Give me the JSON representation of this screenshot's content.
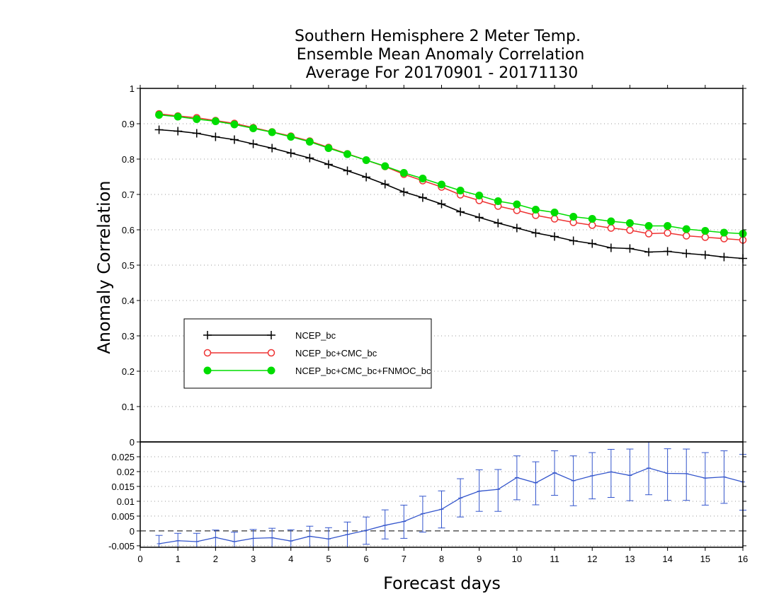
{
  "chart_data": [
    {
      "type": "line",
      "title": [
        "Southern Hemisphere 2 Meter Temp.",
        "Ensemble Mean Anomaly Correlation",
        "Average For 20170901 - 20171130"
      ],
      "xlabel": "Forecast days",
      "ylabel": "Anomaly Correlation",
      "xlim": [
        0,
        16
      ],
      "ylim": [
        0,
        1
      ],
      "xticks": [
        "0",
        "1",
        "2",
        "3",
        "4",
        "5",
        "6",
        "7",
        "8",
        "9",
        "10",
        "11",
        "12",
        "13",
        "14",
        "15",
        "16"
      ],
      "yticks": [
        "0",
        "0.1",
        "0.2",
        "0.3",
        "0.4",
        "0.5",
        "0.6",
        "0.7",
        "0.8",
        "0.9",
        "1"
      ],
      "grid": true,
      "legend_position": "lower-left",
      "x": [
        0.5,
        1,
        1.5,
        2,
        2.5,
        3,
        3.5,
        4,
        4.5,
        5,
        5.5,
        6,
        6.5,
        7,
        7.5,
        8,
        8.5,
        9,
        9.5,
        10,
        10.5,
        11,
        11.5,
        12,
        12.5,
        13,
        13.5,
        14,
        14.5,
        15,
        15.5,
        16
      ],
      "series": [
        {
          "name": "NCEP_bc",
          "color": "#000000",
          "marker": "plus",
          "values": [
            0.883,
            0.879,
            0.873,
            0.863,
            0.855,
            0.843,
            0.831,
            0.817,
            0.803,
            0.785,
            0.767,
            0.749,
            0.729,
            0.707,
            0.691,
            0.673,
            0.651,
            0.635,
            0.619,
            0.605,
            0.591,
            0.581,
            0.569,
            0.561,
            0.549,
            0.547,
            0.537,
            0.539,
            0.533,
            0.529,
            0.523,
            0.519
          ]
        },
        {
          "name": "NCEP_bc+CMC_bc",
          "color": "#ee3333",
          "marker": "open-circle",
          "values": [
            0.928,
            0.922,
            0.917,
            0.909,
            0.901,
            0.889,
            0.877,
            0.865,
            0.851,
            0.833,
            0.815,
            0.797,
            0.779,
            0.757,
            0.739,
            0.721,
            0.699,
            0.683,
            0.667,
            0.655,
            0.641,
            0.631,
            0.621,
            0.613,
            0.605,
            0.599,
            0.589,
            0.591,
            0.583,
            0.579,
            0.575,
            0.571
          ]
        },
        {
          "name": "NCEP_bc+CMC_bc+FNMOC_bc",
          "color": "#00dd00",
          "marker": "filled-circle",
          "values": [
            0.925,
            0.92,
            0.913,
            0.907,
            0.898,
            0.887,
            0.876,
            0.863,
            0.849,
            0.831,
            0.814,
            0.797,
            0.78,
            0.761,
            0.745,
            0.728,
            0.711,
            0.697,
            0.681,
            0.672,
            0.657,
            0.649,
            0.637,
            0.631,
            0.624,
            0.619,
            0.611,
            0.611,
            0.602,
            0.597,
            0.592,
            0.589
          ]
        }
      ]
    },
    {
      "type": "line",
      "xlabel": "Forecast days",
      "xlim": [
        0,
        16
      ],
      "ylim": [
        -0.0055,
        0.03
      ],
      "xticks": [
        "0",
        "1",
        "2",
        "3",
        "4",
        "5",
        "6",
        "7",
        "8",
        "9",
        "10",
        "11",
        "12",
        "13",
        "14",
        "15",
        "16"
      ],
      "yticks": [
        "-0.005",
        "0",
        "0.005",
        "0.01",
        "0.015",
        "0.02",
        "0.025"
      ],
      "grid": true,
      "zero_line": true,
      "error_bars": true,
      "color": "#3355cc",
      "x": [
        0.5,
        1,
        1.5,
        2,
        2.5,
        3,
        3.5,
        4,
        4.5,
        5,
        5.5,
        6,
        6.5,
        7,
        7.5,
        8,
        8.5,
        9,
        9.5,
        10,
        10.5,
        11,
        11.5,
        12,
        12.5,
        13,
        13.5,
        14,
        14.5,
        15,
        15.5,
        16
      ],
      "values": [
        -0.0043,
        -0.0033,
        -0.0036,
        -0.0022,
        -0.0036,
        -0.0025,
        -0.0023,
        -0.0034,
        -0.0018,
        -0.0027,
        -0.0012,
        0.0002,
        0.0019,
        0.0032,
        0.0058,
        0.0073,
        0.0111,
        0.0134,
        0.014,
        0.018,
        0.0162,
        0.0196,
        0.0169,
        0.0186,
        0.0199,
        0.0187,
        0.0212,
        0.0194,
        0.0193,
        0.0178,
        0.0182,
        0.0165
      ],
      "error_low": [
        -0.0055,
        -0.0055,
        -0.0055,
        -0.0055,
        -0.0055,
        -0.0055,
        -0.0055,
        -0.0055,
        -0.0055,
        -0.0055,
        -0.0055,
        -0.0045,
        -0.0027,
        -0.0025,
        -0.0004,
        0.001,
        0.0047,
        0.0066,
        0.0066,
        0.0105,
        0.0088,
        0.012,
        0.0085,
        0.0108,
        0.0113,
        0.0102,
        0.0122,
        0.0103,
        0.0103,
        0.0087,
        0.0093,
        0.007
      ],
      "error_high": [
        -0.0015,
        -0.0008,
        -0.0008,
        0.0003,
        -0.0004,
        0.0005,
        0.0009,
        0.0004,
        0.0016,
        0.0011,
        0.003,
        0.0047,
        0.0071,
        0.0087,
        0.0117,
        0.0135,
        0.0176,
        0.0206,
        0.0207,
        0.0253,
        0.0233,
        0.027,
        0.0253,
        0.0264,
        0.0275,
        0.0276,
        0.03,
        0.0277,
        0.0276,
        0.0264,
        0.027,
        0.0258
      ]
    }
  ]
}
